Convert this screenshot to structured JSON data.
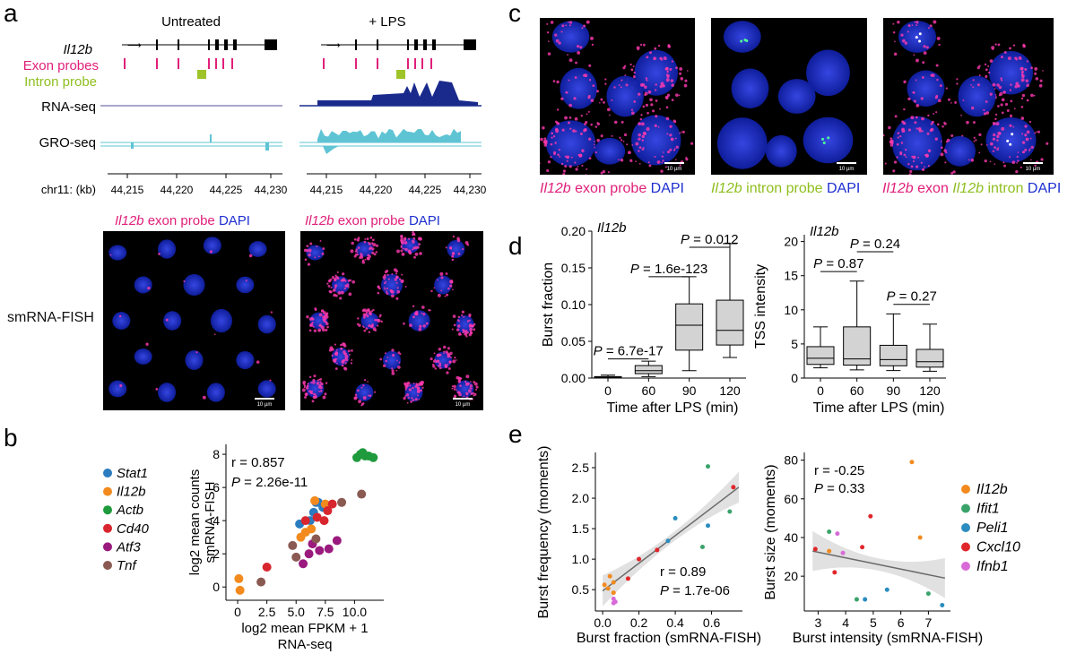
{
  "colors": {
    "exon": "#e0207a",
    "intron": "#9ec42a",
    "dapi": "#2034d8",
    "rnaseq": "#1a2a8c",
    "groseq": "#5ec4d4",
    "stat1": "#2a7bbf",
    "il12b": "#f28a1e",
    "actb": "#1f9a3c",
    "cd40": "#d8262e",
    "atf3": "#9a1a7e",
    "tnf": "#8a5a52",
    "ifit1": "#3aa36a",
    "peli1": "#2a8cbf",
    "cxcl10": "#e0262a",
    "ifnb1": "#d86ad8"
  },
  "panel_letters": [
    "a",
    "b",
    "c",
    "d",
    "e"
  ],
  "panel_a": {
    "cond_untreated": "Untreated",
    "cond_lps": "+ LPS",
    "gene_label": "Il12b",
    "exon_probes": "Exon probes",
    "intron_probe": "Intron probe",
    "rnaseq": "RNA-seq",
    "groseq": "GRO-seq",
    "chrom": "chr11: (kb)",
    "ticks": [
      "44,215",
      "44,220",
      "44,225",
      "44,230"
    ],
    "fish_row": "smRNA-FISH",
    "fish_gene": "Il12b",
    "fish_probe": " exon probe ",
    "dapi": "DAPI",
    "scale": "10 µm"
  },
  "panel_c": {
    "gene": "Il12b",
    "exon_probe": " exon probe ",
    "intron_probe": " intron probe ",
    "exon": " exon ",
    "intron": " intron ",
    "dapi": "DAPI",
    "scale": "10 µm"
  },
  "chart_data": [
    {
      "id": "b",
      "type": "scatter",
      "xlabel": "log2 mean FPKM + 1",
      "xlabel2": "RNA-seq",
      "ylabel": "log2 mean counts",
      "ylabel2": "smRNA-FISH",
      "xlim": [
        -1,
        12.5
      ],
      "ylim": [
        -0.8,
        8.6
      ],
      "xticks": [
        "0",
        "2.5",
        "5.0",
        "7.5",
        "10.0"
      ],
      "xtick_vals": [
        0,
        2.5,
        5,
        7.5,
        10
      ],
      "yticks": [
        "0",
        "2",
        "4",
        "6",
        "8"
      ],
      "ytick_vals": [
        0,
        2,
        4,
        6,
        8
      ],
      "r_text": "r = 0.857",
      "p_label": "P",
      "p_value": " = 2.26e-11",
      "legend": [
        "Stat1",
        "Il12b",
        "Actb",
        "Cd40",
        "Atf3",
        "Tnf"
      ],
      "series": [
        {
          "name": "Stat1",
          "points": [
            [
              5.3,
              3.8
            ],
            [
              6.2,
              4.0
            ],
            [
              6.7,
              5.1
            ],
            [
              7.3,
              4.8
            ],
            [
              6.5,
              4.5
            ],
            [
              6.9,
              5.1
            ]
          ]
        },
        {
          "name": "Il12b",
          "points": [
            [
              0.1,
              0.5
            ],
            [
              0.2,
              -0.2
            ],
            [
              5.8,
              3.3
            ],
            [
              5.4,
              3.0
            ],
            [
              6.6,
              5.2
            ],
            [
              7.5,
              5.0
            ],
            [
              6.3,
              3.5
            ]
          ]
        },
        {
          "name": "Actb",
          "points": [
            [
              10.2,
              7.8
            ],
            [
              10.5,
              8.0
            ],
            [
              10.9,
              7.9
            ],
            [
              11.2,
              7.9
            ],
            [
              11.6,
              7.8
            ],
            [
              10.7,
              8.1
            ]
          ]
        },
        {
          "name": "Cd40",
          "points": [
            [
              2.5,
              1.2
            ],
            [
              5.8,
              4.0
            ],
            [
              6.8,
              4.2
            ],
            [
              7.4,
              4.0
            ],
            [
              8.1,
              5.0
            ],
            [
              7.7,
              4.6
            ]
          ]
        },
        {
          "name": "Atf3",
          "points": [
            [
              5.6,
              1.4
            ],
            [
              6.4,
              2.6
            ],
            [
              7.0,
              2.2
            ],
            [
              7.8,
              2.3
            ],
            [
              8.5,
              2.8
            ],
            [
              6.1,
              2.0
            ]
          ]
        },
        {
          "name": "Tnf",
          "points": [
            [
              2.0,
              0.3
            ],
            [
              4.7,
              2.5
            ],
            [
              6.7,
              2.9
            ],
            [
              8.9,
              5.1
            ],
            [
              10.6,
              5.6
            ],
            [
              5.0,
              1.8
            ]
          ]
        }
      ]
    },
    {
      "id": "d1",
      "type": "box",
      "gene": "Il12b",
      "xlabel": "Time after LPS (min)",
      "ylabel": "Burst fraction",
      "categories": [
        "0",
        "60",
        "90",
        "120"
      ],
      "ylim": [
        0,
        0.2
      ],
      "yticks": [
        "0.00",
        "0.05",
        "0.10",
        "0.15",
        "0.20"
      ],
      "ytick_vals": [
        0,
        0.05,
        0.1,
        0.15,
        0.2
      ],
      "boxes": [
        {
          "min": 0,
          "q1": 0,
          "median": 0.001,
          "q3": 0.002,
          "max": 0.004
        },
        {
          "min": 0.002,
          "q1": 0.006,
          "median": 0.01,
          "q3": 0.017,
          "max": 0.023
        },
        {
          "min": 0.01,
          "q1": 0.038,
          "median": 0.072,
          "q3": 0.101,
          "max": 0.138
        },
        {
          "min": 0.028,
          "q1": 0.045,
          "median": 0.065,
          "q3": 0.106,
          "max": 0.183
        }
      ],
      "comparisons": [
        {
          "from": 0,
          "to": 1,
          "label": "P",
          "value": " = 6.7e-17",
          "y": 0.026
        },
        {
          "from": 1,
          "to": 2,
          "label": "P",
          "value": " = 1.6e-123",
          "y": 0.138
        },
        {
          "from": 2,
          "to": 3,
          "label": "P",
          "value": " = 0.012",
          "y": 0.178
        }
      ]
    },
    {
      "id": "d2",
      "type": "box",
      "gene": "Il12b",
      "xlabel": "Time after LPS (min)",
      "ylabel": "TSS intensity",
      "categories": [
        "0",
        "60",
        "90",
        "120"
      ],
      "ylim": [
        0,
        21
      ],
      "yticks": [
        "0",
        "5",
        "10",
        "15",
        "20"
      ],
      "ytick_vals": [
        0,
        5,
        10,
        15,
        20
      ],
      "boxes": [
        {
          "min": 1.5,
          "q1": 2.0,
          "median": 2.9,
          "q3": 4.6,
          "max": 7.5
        },
        {
          "min": 1.2,
          "q1": 1.9,
          "median": 2.8,
          "q3": 7.5,
          "max": 14.2
        },
        {
          "min": 1.1,
          "q1": 1.8,
          "median": 2.7,
          "q3": 4.8,
          "max": 9.4
        },
        {
          "min": 1.0,
          "q1": 1.6,
          "median": 2.4,
          "q3": 4.2,
          "max": 7.9
        }
      ],
      "comparisons": [
        {
          "from": 0,
          "to": 1,
          "label": "P",
          "value": " = 0.87",
          "y": 15.6
        },
        {
          "from": 1,
          "to": 2,
          "label": "P",
          "value": " = 0.24",
          "y": 18.5
        },
        {
          "from": 2,
          "to": 3,
          "label": "P",
          "value": " = 0.27",
          "y": 10.8
        }
      ]
    },
    {
      "id": "e1",
      "type": "scatter",
      "xlabel": "Burst fraction (smRNA-FISH)",
      "ylabel": "Burst frequency (moments)",
      "xlim": [
        -0.04,
        0.77
      ],
      "ylim": [
        0.15,
        2.75
      ],
      "xticks": [
        "0.0",
        "0.2",
        "0.4",
        "0.6"
      ],
      "xtick_vals": [
        0,
        0.2,
        0.4,
        0.6
      ],
      "yticks": [
        "0.5",
        "1.0",
        "1.5",
        "2.0",
        "2.5"
      ],
      "ytick_vals": [
        0.5,
        1.0,
        1.5,
        2.0,
        2.5
      ],
      "r_text": "r = 0.89",
      "p_label": "P",
      "p_value": " = 1.7e-06",
      "fit": {
        "x0": 0.0,
        "y0": 0.48,
        "x1": 0.75,
        "y1": 2.18
      },
      "series": [
        {
          "name": "Il12b",
          "points": [
            [
              0.01,
              0.58
            ],
            [
              0.03,
              0.52
            ],
            [
              0.06,
              0.62
            ],
            [
              0.04,
              0.72
            ],
            [
              0.06,
              0.45
            ]
          ]
        },
        {
          "name": "Ifit1",
          "points": [
            [
              0.58,
              2.52
            ],
            [
              0.7,
              1.78
            ],
            [
              0.55,
              1.2
            ]
          ]
        },
        {
          "name": "Peli1",
          "points": [
            [
              0.4,
              1.67
            ],
            [
              0.58,
              1.55
            ],
            [
              0.36,
              1.3
            ]
          ]
        },
        {
          "name": "Cxcl10",
          "points": [
            [
              0.2,
              1.0
            ],
            [
              0.3,
              1.15
            ],
            [
              0.14,
              0.68
            ],
            [
              0.72,
              2.18
            ]
          ]
        },
        {
          "name": "Ifnb1",
          "points": [
            [
              0.06,
              0.35
            ],
            [
              0.06,
              0.28
            ],
            [
              0.07,
              0.3
            ]
          ]
        }
      ]
    },
    {
      "id": "e2",
      "type": "scatter",
      "xlabel": "Burst intensity (smRNA-FISH)",
      "ylabel": "Burst size (moments)",
      "xlim": [
        2.5,
        7.8
      ],
      "ylim": [
        2,
        84
      ],
      "xticks": [
        "3",
        "4",
        "5",
        "6",
        "7"
      ],
      "xtick_vals": [
        3,
        4,
        5,
        6,
        7
      ],
      "yticks": [
        "20",
        "40",
        "60",
        "80"
      ],
      "ytick_vals": [
        20,
        40,
        60,
        80
      ],
      "r_text": "r = -0.25",
      "p_label": "P",
      "p_value": " = 0.33",
      "fit": {
        "x0": 2.8,
        "y0": 33,
        "x1": 7.6,
        "y1": 19
      },
      "legend": [
        "Il12b",
        "Ifit1",
        "Peli1",
        "Cxcl10",
        "Ifnb1"
      ],
      "series": [
        {
          "name": "Il12b",
          "points": [
            [
              6.4,
              79
            ],
            [
              6.7,
              40
            ],
            [
              3.4,
              33
            ]
          ]
        },
        {
          "name": "Ifit1",
          "points": [
            [
              3.4,
              43
            ],
            [
              4.4,
              8
            ],
            [
              7.0,
              11
            ]
          ]
        },
        {
          "name": "Peli1",
          "points": [
            [
              5.5,
              13
            ],
            [
              7.5,
              5
            ],
            [
              4.7,
              8
            ]
          ]
        },
        {
          "name": "Cxcl10",
          "points": [
            [
              2.9,
              34
            ],
            [
              4.9,
              51
            ],
            [
              4.6,
              35
            ],
            [
              3.6,
              22
            ]
          ]
        },
        {
          "name": "Ifnb1",
          "points": [
            [
              3.7,
              42
            ],
            [
              3.9,
              32
            ]
          ]
        }
      ]
    }
  ]
}
